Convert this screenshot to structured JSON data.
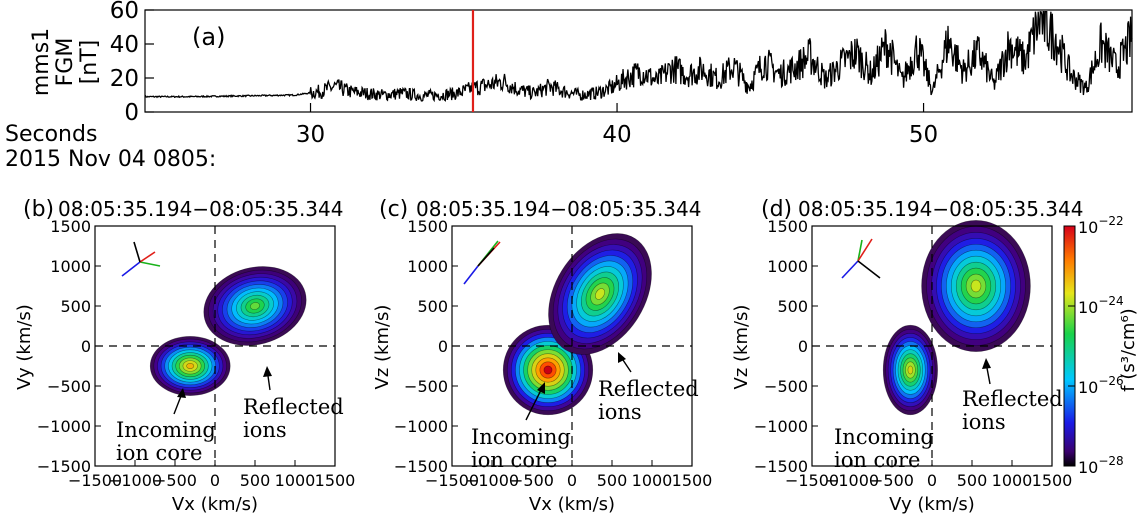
{
  "colors": {
    "marker": "#e0201a",
    "trace": "#000000",
    "axis": "#000000"
  },
  "chart_data": [
    {
      "type": "line",
      "panel_label": "(a)",
      "ylabel": [
        "mms1",
        "FGM",
        "[nT]"
      ],
      "x_title": "Seconds",
      "x_date": "2015 Nov 04 0805:",
      "xlim": [
        24.6,
        56.8
      ],
      "ylim": [
        0,
        60
      ],
      "xticks": [
        30,
        40,
        50
      ],
      "yticks": [
        0,
        20,
        40,
        60
      ],
      "marker_x": 35.3,
      "series": [
        {
          "x": [
            24.6,
            26,
            28,
            29.5,
            30.3,
            30.8,
            31.3,
            31.8,
            32.4,
            33,
            33.6,
            34.2,
            34.8,
            35.3,
            35.8,
            36.3,
            36.8,
            37.3,
            37.8,
            38.3,
            38.8,
            39.3,
            39.8,
            40.3,
            40.8,
            41.3,
            41.8,
            42.3,
            42.8,
            43.3,
            43.8,
            44.3,
            44.8,
            45.3,
            45.8,
            46.3,
            46.8,
            47.3,
            47.8,
            48.3,
            48.8,
            49.3,
            49.8,
            50.3,
            50.8,
            51.3,
            51.8,
            52.3,
            52.8,
            53.3,
            53.8,
            54.3,
            54.8,
            55.3,
            55.8,
            56.3,
            56.8
          ],
          "values": [
            9,
            9,
            9.5,
            10,
            12,
            15,
            12,
            11,
            10,
            11,
            9.5,
            10,
            11,
            14,
            16,
            18,
            13,
            11,
            15,
            12,
            10,
            11,
            14,
            20,
            24,
            18,
            26,
            22,
            25,
            19,
            27,
            15,
            30,
            22,
            26,
            33,
            19,
            28,
            35,
            22,
            40,
            18,
            38,
            12,
            42,
            24,
            35,
            16,
            40,
            30,
            55,
            44,
            22,
            14,
            40,
            26,
            44
          ]
        }
      ]
    },
    {
      "type": "heatmap",
      "panel_label": "(b)",
      "time_range": "08:05:35.194−08:05:35.344",
      "xlabel": "Vx (km/s)",
      "ylabel": "Vy (km/s)",
      "xlim": [
        -1500,
        1500
      ],
      "ylim": [
        -1500,
        1500
      ],
      "xticks": [
        -1500,
        -1000,
        -500,
        0,
        500,
        1000,
        1500
      ],
      "yticks": [
        -1500,
        -1000,
        -500,
        0,
        500,
        1000,
        1500
      ],
      "annotations": [
        {
          "text": [
            "Incoming",
            "ion core"
          ],
          "arrow_from": [
            -300,
            -1400
          ],
          "arrow_to": [
            -300,
            -1420
          ],
          "point": [
            -380,
            -550
          ]
        },
        {
          "text": [
            "Reflected",
            "ions"
          ],
          "point": [
            650,
            -250
          ]
        }
      ],
      "blobs": [
        {
          "cx": -310,
          "cy": -250,
          "rx": 500,
          "ry": 370,
          "peak": 0.76,
          "rot": 0
        },
        {
          "cx": 500,
          "cy": 500,
          "rx": 650,
          "ry": 480,
          "peak": 0.58,
          "rot": -15
        }
      ]
    },
    {
      "type": "heatmap",
      "panel_label": "(c)",
      "time_range": "08:05:35.194−08:05:35.344",
      "xlabel": "Vx (km/s)",
      "ylabel": "Vz (km/s)",
      "xlim": [
        -1500,
        1500
      ],
      "ylim": [
        -1500,
        1500
      ],
      "xticks": [
        -1500,
        -1000,
        -500,
        0,
        500,
        1000,
        1500
      ],
      "yticks": [
        -1500,
        -1000,
        -500,
        0,
        500,
        1000,
        1500
      ],
      "annotations": [
        {
          "text": [
            "Incoming",
            "ion core"
          ]
        },
        {
          "text": [
            "Reflected",
            "ions"
          ]
        }
      ],
      "blobs": [
        {
          "cx": -300,
          "cy": -300,
          "rx": 560,
          "ry": 560,
          "peak": 1.0,
          "rot": 0
        },
        {
          "cx": 350,
          "cy": 650,
          "rx": 560,
          "ry": 820,
          "peak": 0.66,
          "rot": 32
        }
      ]
    },
    {
      "type": "heatmap",
      "panel_label": "(d)",
      "time_range": "08:05:35.194−08:05:35.344",
      "xlabel": "Vy (km/s)",
      "ylabel": "Vz (km/s)",
      "xlim": [
        -1500,
        1500
      ],
      "ylim": [
        -1500,
        1500
      ],
      "xticks": [
        -1500,
        -1000,
        -500,
        0,
        500,
        1000,
        1500
      ],
      "yticks": [
        -1500,
        -1000,
        -500,
        0,
        500,
        1000,
        1500
      ],
      "annotations": [
        {
          "text": [
            "Incoming",
            "ion core"
          ]
        },
        {
          "text": [
            "Reflected",
            "ions"
          ]
        }
      ],
      "blobs": [
        {
          "cx": -270,
          "cy": -300,
          "rx": 340,
          "ry": 560,
          "peak": 0.7,
          "rot": 0
        },
        {
          "cx": 550,
          "cy": 750,
          "rx": 680,
          "ry": 820,
          "peak": 0.66,
          "rot": 0
        }
      ]
    }
  ],
  "colorbar": {
    "label": "f (s³/cm⁶)",
    "ticks": [
      {
        "base": "10",
        "exp": "−22",
        "value": -22
      },
      {
        "base": "10",
        "exp": "−24",
        "value": -24
      },
      {
        "base": "10",
        "exp": "−26",
        "value": -26
      },
      {
        "base": "10",
        "exp": "−28",
        "value": -28
      }
    ],
    "range": [
      -28,
      -22
    ]
  }
}
